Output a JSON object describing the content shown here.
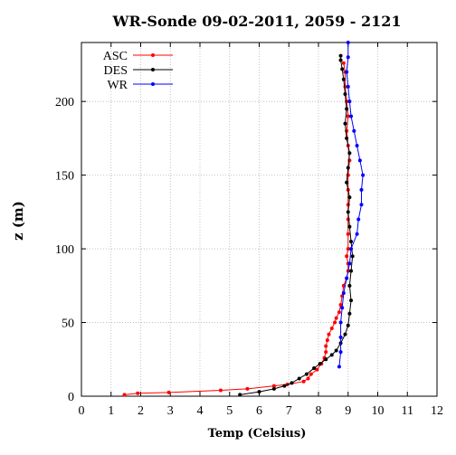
{
  "chart_data": {
    "type": "line",
    "title": "WR-Sonde 09-02-2011, 2059 - 2121",
    "xlabel": "Temp (Celsius)",
    "ylabel": "z (m)",
    "xlim": [
      0,
      12
    ],
    "ylim": [
      0,
      240
    ],
    "x_ticks": [
      "0",
      "1",
      "2",
      "3",
      "4",
      "5",
      "6",
      "7",
      "8",
      "9",
      "10",
      "11",
      "12"
    ],
    "y_ticks": [
      "0",
      "50",
      "100",
      "150",
      "200"
    ],
    "grid": true,
    "legend_position": "top-left",
    "series": [
      {
        "name": "ASC",
        "color": "#ff0000",
        "points": [
          [
            1.45,
            1
          ],
          [
            1.9,
            2
          ],
          [
            2.95,
            2.5
          ],
          [
            4.7,
            4
          ],
          [
            5.6,
            5
          ],
          [
            6.5,
            7
          ],
          [
            6.95,
            8
          ],
          [
            7.5,
            10
          ],
          [
            7.65,
            12
          ],
          [
            7.75,
            15
          ],
          [
            7.95,
            18
          ],
          [
            8.1,
            22
          ],
          [
            8.2,
            26
          ],
          [
            8.25,
            30
          ],
          [
            8.25,
            34
          ],
          [
            8.3,
            38
          ],
          [
            8.35,
            42
          ],
          [
            8.45,
            46
          ],
          [
            8.55,
            50
          ],
          [
            8.6,
            53
          ],
          [
            8.7,
            57
          ],
          [
            8.75,
            62
          ],
          [
            8.8,
            68
          ],
          [
            8.85,
            75
          ],
          [
            8.95,
            80
          ],
          [
            9.0,
            85
          ],
          [
            9.0,
            90
          ],
          [
            8.95,
            95
          ],
          [
            9.0,
            100
          ],
          [
            9.0,
            110
          ],
          [
            9.0,
            120
          ],
          [
            9.0,
            130
          ],
          [
            9.0,
            140
          ],
          [
            9.0,
            150
          ],
          [
            9.05,
            160
          ],
          [
            9.0,
            170
          ],
          [
            8.95,
            180
          ],
          [
            9.0,
            190
          ],
          [
            8.95,
            200
          ],
          [
            8.9,
            210
          ],
          [
            8.9,
            220
          ],
          [
            8.85,
            226
          ]
        ]
      },
      {
        "name": "DES",
        "color": "#000000",
        "points": [
          [
            5.35,
            1
          ],
          [
            6.0,
            3
          ],
          [
            6.5,
            5
          ],
          [
            6.85,
            7
          ],
          [
            7.1,
            9
          ],
          [
            7.35,
            12
          ],
          [
            7.6,
            15
          ],
          [
            7.85,
            19
          ],
          [
            8.05,
            22
          ],
          [
            8.25,
            25
          ],
          [
            8.45,
            28
          ],
          [
            8.6,
            31
          ],
          [
            8.75,
            36
          ],
          [
            8.9,
            42
          ],
          [
            9.0,
            48
          ],
          [
            9.05,
            56
          ],
          [
            9.1,
            65
          ],
          [
            9.05,
            75
          ],
          [
            9.1,
            85
          ],
          [
            9.15,
            95
          ],
          [
            9.1,
            105
          ],
          [
            9.05,
            115
          ],
          [
            9.0,
            125
          ],
          [
            9.05,
            135
          ],
          [
            8.95,
            145
          ],
          [
            9.0,
            155
          ],
          [
            9.05,
            165
          ],
          [
            8.95,
            175
          ],
          [
            8.9,
            185
          ],
          [
            8.95,
            195
          ],
          [
            8.9,
            205
          ],
          [
            8.85,
            215
          ],
          [
            8.8,
            222
          ],
          [
            8.75,
            228
          ],
          [
            8.75,
            231
          ]
        ]
      },
      {
        "name": "WR",
        "color": "#0000ff",
        "points": [
          [
            8.7,
            20
          ],
          [
            8.75,
            30
          ],
          [
            8.75,
            40
          ],
          [
            8.75,
            50
          ],
          [
            8.8,
            60
          ],
          [
            8.85,
            70
          ],
          [
            8.95,
            80
          ],
          [
            9.05,
            90
          ],
          [
            9.1,
            100
          ],
          [
            9.3,
            110
          ],
          [
            9.35,
            120
          ],
          [
            9.45,
            130
          ],
          [
            9.45,
            140
          ],
          [
            9.5,
            150
          ],
          [
            9.4,
            160
          ],
          [
            9.3,
            170
          ],
          [
            9.2,
            180
          ],
          [
            9.1,
            190
          ],
          [
            9.05,
            200
          ],
          [
            9.0,
            210
          ],
          [
            8.95,
            220
          ],
          [
            9.0,
            230
          ],
          [
            9.0,
            240
          ]
        ]
      }
    ]
  }
}
